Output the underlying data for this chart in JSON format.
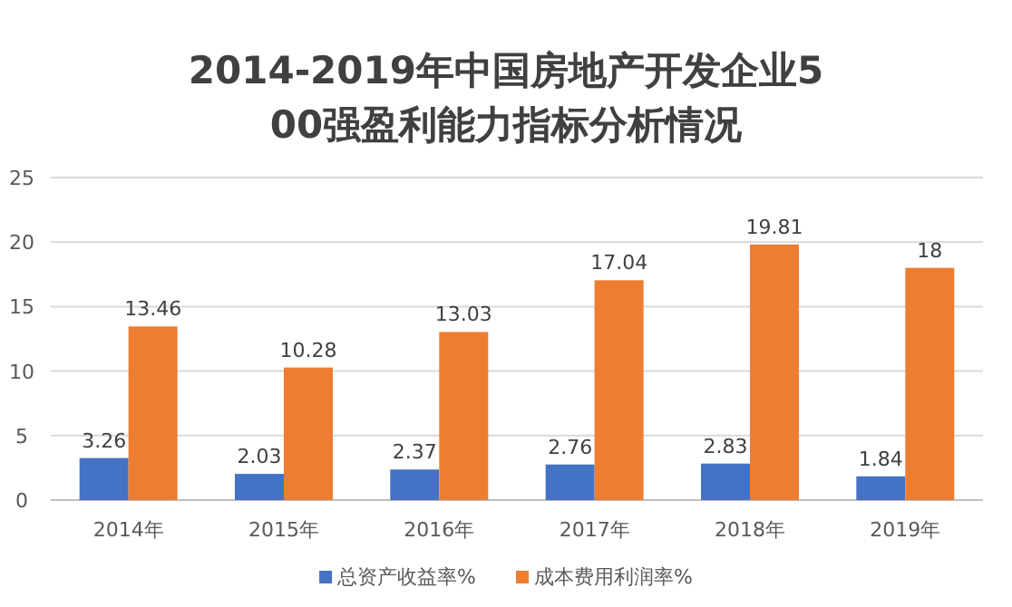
{
  "chart_data": {
    "type": "bar",
    "title": "2014-2019年中国房地产开发企业500强盈利能力指标分析情况",
    "categories": [
      "2014年",
      "2015年",
      "2016年",
      "2017年",
      "2018年",
      "2019年"
    ],
    "series": [
      {
        "name": "总资产收益率%",
        "color": "#4472c4",
        "values": [
          3.26,
          2.03,
          2.37,
          2.76,
          2.83,
          1.84
        ]
      },
      {
        "name": "成本费用利润率%",
        "color": "#ed7d31",
        "values": [
          13.46,
          10.28,
          13.03,
          17.04,
          19.81,
          18
        ]
      }
    ],
    "ylim": [
      0,
      25
    ],
    "yticks": [
      0,
      5,
      10,
      15,
      20,
      25
    ],
    "grid": "y",
    "legend": "bottom",
    "data_labels": true
  }
}
